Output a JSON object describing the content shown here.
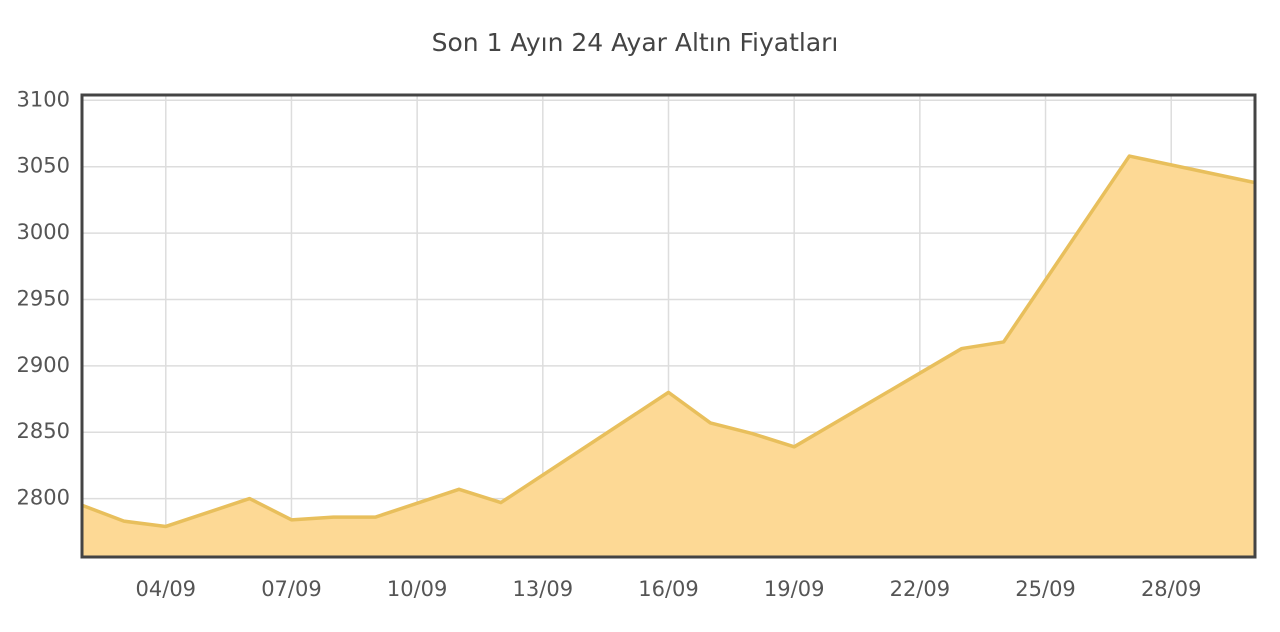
{
  "chart_data": {
    "type": "area",
    "title": "Son 1 Ayın 24 Ayar Altın Fiyatları",
    "x": [
      2,
      3,
      4,
      6,
      7,
      8,
      9,
      11,
      12,
      16,
      17,
      18,
      19,
      23,
      24,
      27,
      30
    ],
    "values": [
      2795,
      2783,
      2779,
      2800,
      2784,
      2786,
      2786,
      2807,
      2797,
      2880,
      2857,
      2849,
      2839,
      2913,
      2918,
      3058,
      3038
    ],
    "color": "#fdd995",
    "line_color": "#e8bf5c",
    "xlim": [
      2,
      30
    ],
    "xticks": [
      {
        "value": 4,
        "label": "04/09"
      },
      {
        "value": 7,
        "label": "07/09"
      },
      {
        "value": 10,
        "label": "10/09"
      },
      {
        "value": 13,
        "label": "13/09"
      },
      {
        "value": 16,
        "label": "16/09"
      },
      {
        "value": 19,
        "label": "19/09"
      },
      {
        "value": 22,
        "label": "22/09"
      },
      {
        "value": 25,
        "label": "25/09"
      },
      {
        "value": 28,
        "label": "28/09"
      }
    ],
    "ylim": [
      2756,
      3104
    ],
    "yticks": [
      2800,
      2850,
      2900,
      2950,
      3000,
      3050,
      3100
    ],
    "grid": true
  }
}
